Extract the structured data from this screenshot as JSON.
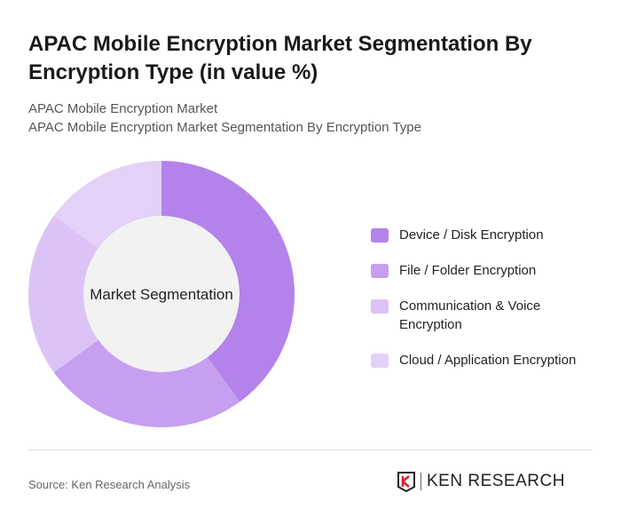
{
  "title": "APAC Mobile Encryption Market Segmentation By Encryption Type (in value %)",
  "subtitle1": "APAC Mobile Encryption Market",
  "subtitle2": "APAC Mobile Encryption Market Segmentation By Encryption Type",
  "source": "Source: Ken Research Analysis",
  "logo_text": "KEN RESEARCH",
  "chart_data": {
    "type": "pie",
    "donut": true,
    "center_label": "Market Segmentation",
    "categories": [
      "Device / Disk Encryption",
      "File / Folder Encryption",
      "Communication & Voice Encryption",
      "Cloud / Application Encryption"
    ],
    "values": [
      40,
      25,
      20,
      15
    ],
    "colors": [
      "#b383eb",
      "#c79ff0",
      "#dbc3f6",
      "#e3d1f7"
    ],
    "legend_position": "right"
  }
}
